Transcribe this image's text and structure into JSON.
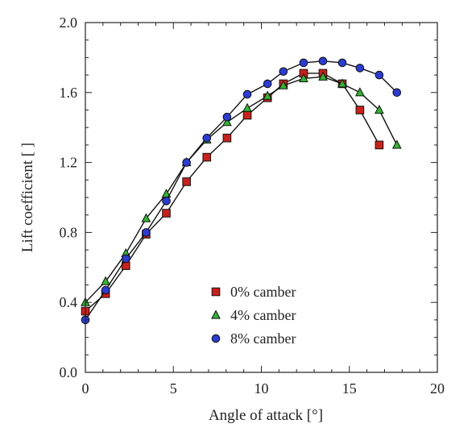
{
  "chart_data": {
    "type": "line",
    "title": "",
    "xlabel": "Angle of attack [°]",
    "ylabel": "Lift coefficient [ ]",
    "xlim": [
      0,
      20
    ],
    "ylim": [
      0.0,
      2.0
    ],
    "xticks": [
      0,
      5,
      10,
      15,
      20
    ],
    "xtick_labels": [
      "0",
      "5",
      "10",
      "15",
      "20"
    ],
    "yticks": [
      0.0,
      0.4,
      0.8,
      1.2,
      1.6,
      2.0
    ],
    "ytick_labels": [
      "0.0",
      "0.4",
      "0.8",
      "1.2",
      "1.6",
      "2.0"
    ],
    "grid": false,
    "legend_position": "lower-center",
    "series": [
      {
        "name": "0% camber",
        "marker": "square",
        "color": "#cc1f1a",
        "x": [
          0.0,
          1.15,
          2.3,
          3.45,
          4.6,
          5.75,
          6.9,
          8.05,
          9.2,
          10.35,
          11.25,
          12.4,
          13.5,
          14.6,
          15.6,
          16.7
        ],
        "y": [
          0.35,
          0.45,
          0.61,
          0.79,
          0.91,
          1.09,
          1.23,
          1.34,
          1.47,
          1.57,
          1.65,
          1.71,
          1.71,
          1.65,
          1.5,
          1.3
        ]
      },
      {
        "name": "4% camber",
        "marker": "triangle",
        "color": "#2fb62f",
        "x": [
          0.0,
          1.15,
          2.3,
          3.45,
          4.6,
          5.75,
          6.9,
          8.05,
          9.2,
          10.35,
          11.25,
          12.4,
          13.5,
          14.6,
          15.6,
          16.7,
          17.7
        ],
        "y": [
          0.4,
          0.52,
          0.68,
          0.88,
          1.02,
          1.2,
          1.33,
          1.43,
          1.51,
          1.58,
          1.64,
          1.68,
          1.69,
          1.65,
          1.6,
          1.5,
          1.3
        ]
      },
      {
        "name": "8% camber",
        "marker": "circle",
        "color": "#2a3bd6",
        "x": [
          0.0,
          1.15,
          2.3,
          3.45,
          4.6,
          5.75,
          6.9,
          8.05,
          9.2,
          10.35,
          11.25,
          12.4,
          13.5,
          14.6,
          15.6,
          16.7,
          17.7
        ],
        "y": [
          0.3,
          0.47,
          0.65,
          0.8,
          0.98,
          1.2,
          1.34,
          1.46,
          1.59,
          1.65,
          1.72,
          1.77,
          1.78,
          1.77,
          1.74,
          1.7,
          1.6
        ]
      }
    ]
  }
}
